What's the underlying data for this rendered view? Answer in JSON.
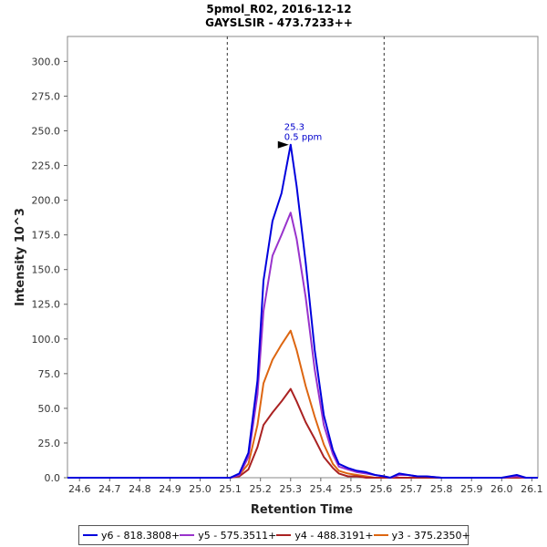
{
  "chart_data": {
    "type": "line",
    "title": "5pmol_R02, 2016-12-12",
    "subtitle": "GAYSLSIR - 473.7233++",
    "xlabel": "Retention Time",
    "ylabel": "Intensity 10^3",
    "xlim": [
      24.56,
      26.12
    ],
    "ylim": [
      0,
      318
    ],
    "xticks": [
      "24.6",
      "24.7",
      "24.8",
      "24.9",
      "25.0",
      "25.1",
      "25.2",
      "25.3",
      "25.4",
      "25.5",
      "25.6",
      "25.7",
      "25.8",
      "25.9",
      "26.0",
      "26.1"
    ],
    "yticks": [
      "0.0",
      "25.0",
      "50.0",
      "75.0",
      "100.0",
      "125.0",
      "150.0",
      "175.0",
      "200.0",
      "225.0",
      "250.0",
      "275.0",
      "300.0"
    ],
    "grid": false,
    "vlines": [
      25.09,
      25.61
    ],
    "legend_position": "bottom",
    "annotation": {
      "x": 25.3,
      "y": 240,
      "line1": "25.3",
      "line2": "0.5 ppm"
    },
    "series": [
      {
        "name": "y6 - 818.3808+",
        "color": "#0000dd",
        "x": [
          24.56,
          25.1,
          25.13,
          25.16,
          25.19,
          25.21,
          25.24,
          25.27,
          25.3,
          25.32,
          25.35,
          25.38,
          25.41,
          25.44,
          25.46,
          25.49,
          25.52,
          25.55,
          25.58,
          25.61,
          25.63,
          25.66,
          25.69,
          25.72,
          25.75,
          25.8,
          26.0,
          26.05,
          26.08,
          26.12
        ],
        "y": [
          0,
          0,
          3,
          18,
          70,
          142,
          185,
          205,
          240,
          210,
          155,
          92,
          45,
          20,
          10,
          7,
          5,
          4,
          2,
          1,
          0,
          3,
          2,
          1,
          1,
          0,
          0,
          2,
          0,
          0
        ]
      },
      {
        "name": "y5 - 575.3511+",
        "color": "#9933cc",
        "x": [
          24.56,
          25.1,
          25.13,
          25.16,
          25.19,
          25.21,
          25.24,
          25.27,
          25.3,
          25.32,
          25.35,
          25.38,
          25.41,
          25.44,
          25.46,
          25.49,
          25.52,
          25.55,
          25.58,
          25.61,
          25.63,
          25.66,
          25.69,
          25.72,
          25.75,
          25.8,
          26.0,
          26.05,
          26.08,
          26.12
        ],
        "y": [
          0,
          0,
          2,
          15,
          60,
          120,
          160,
          175,
          191,
          172,
          130,
          78,
          38,
          17,
          8,
          6,
          4,
          3,
          2,
          1,
          0,
          2,
          2,
          1,
          1,
          0,
          0,
          1,
          0,
          0
        ]
      },
      {
        "name": "y4 - 488.3191+",
        "color": "#aa2222",
        "x": [
          24.56,
          25.1,
          25.13,
          25.16,
          25.19,
          25.21,
          25.24,
          25.27,
          25.3,
          25.32,
          25.35,
          25.38,
          25.41,
          25.44,
          25.46,
          25.49,
          25.52,
          25.55,
          25.58,
          25.61,
          25.8,
          26.12
        ],
        "y": [
          0,
          0,
          1,
          6,
          22,
          38,
          47,
          55,
          64,
          55,
          40,
          28,
          15,
          7,
          3,
          1,
          1,
          0,
          0,
          0,
          0,
          0
        ]
      },
      {
        "name": "y3 - 375.2350+",
        "color": "#dd6611",
        "x": [
          24.56,
          25.1,
          25.13,
          25.16,
          25.19,
          25.21,
          25.24,
          25.27,
          25.3,
          25.32,
          25.35,
          25.38,
          25.41,
          25.44,
          25.46,
          25.49,
          25.52,
          25.55,
          25.58,
          25.61,
          25.8,
          26.12
        ],
        "y": [
          0,
          0,
          2,
          10,
          38,
          68,
          85,
          96,
          106,
          92,
          66,
          44,
          24,
          10,
          5,
          3,
          2,
          1,
          0,
          0,
          0,
          0
        ]
      }
    ]
  }
}
